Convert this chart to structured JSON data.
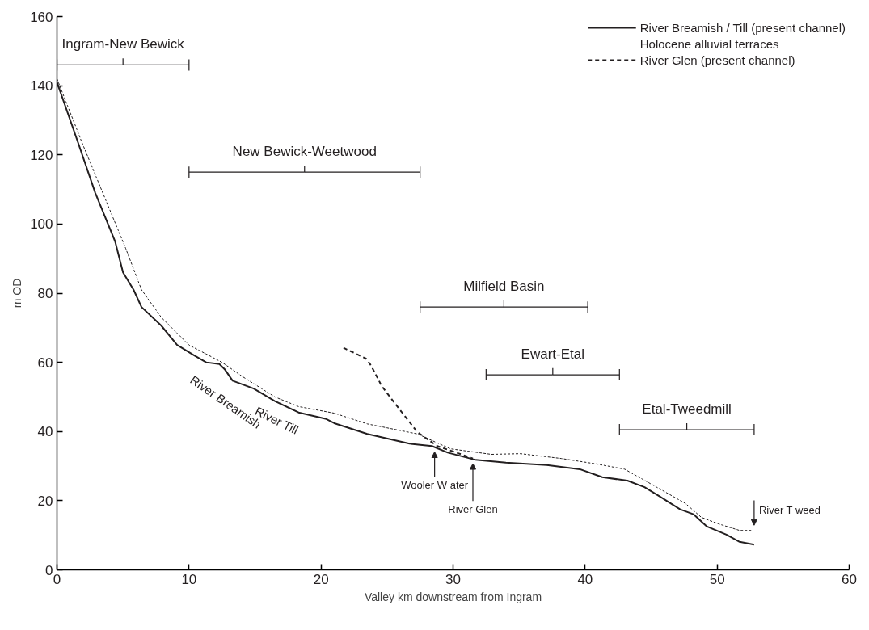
{
  "chart_data": {
    "type": "line",
    "xlabel": "Valley km downstream from Ingram",
    "ylabel": "m OD",
    "xlim": [
      0,
      60
    ],
    "ylim": [
      0,
      160
    ],
    "xticks": [
      0,
      10,
      20,
      30,
      40,
      50,
      60
    ],
    "yticks": [
      0,
      20,
      40,
      60,
      80,
      100,
      120,
      140,
      160
    ],
    "grid": false,
    "legend": "top right",
    "marker": "none",
    "series": [
      {
        "name": "River Breamish / Till (present channel)",
        "color": "#231f20",
        "line_style": "solid",
        "x": [
          0,
          1.6,
          2.9,
          4.4,
          5.0,
          5.8,
          6.4,
          7.9,
          9.1,
          10.4,
          11.3,
          12.3,
          12.7,
          13.3,
          14.9,
          16.5,
          18.3,
          20.4,
          21.0,
          23.5,
          26.7,
          28.4,
          29.6,
          31.7,
          34.0,
          37.1,
          39.6,
          41.3,
          43.2,
          44.5,
          45.7,
          47.2,
          48.2,
          49.2,
          50.7,
          51.7,
          52.8
        ],
        "values": [
          141,
          123.5,
          109,
          95,
          86,
          81,
          76,
          70.6,
          65,
          62,
          60,
          59.5,
          58,
          54.7,
          52.4,
          48.8,
          45.5,
          43.6,
          42.4,
          39.3,
          36.5,
          35.8,
          33.9,
          31.8,
          31,
          30.3,
          29.1,
          26.8,
          25.8,
          23.9,
          21.1,
          17.5,
          16.1,
          12.6,
          10.2,
          8.1,
          7.3
        ]
      },
      {
        "name": "Holocene alluvial terraces",
        "color": "#231f20",
        "line_style": "dotted",
        "x": [
          0,
          1.9,
          5.2,
          6.4,
          7.9,
          10.0,
          12.5,
          14.0,
          16.5,
          18.3,
          21.0,
          23.5,
          27.3,
          29.8,
          32.9,
          35.1,
          38.2,
          40.9,
          43.0,
          45.1,
          47.6,
          48.8,
          50.1,
          51.7,
          52.6
        ],
        "values": [
          142,
          123.5,
          93,
          81,
          73,
          65,
          60,
          56,
          50,
          47.2,
          45.3,
          42.2,
          39.3,
          35,
          33.4,
          33.6,
          32.2,
          30.6,
          29.1,
          24.6,
          19.2,
          15.2,
          13.3,
          11.4,
          11.4
        ]
      },
      {
        "name": "River Glen (present channel)",
        "color": "#231f20",
        "line_style": "dashed",
        "x": [
          21.7,
          23.4,
          23.8,
          24.6,
          25.7,
          27.3,
          28.8,
          30.1,
          31.5
        ],
        "values": [
          64.2,
          61.1,
          59,
          53.1,
          47.6,
          39.8,
          35.8,
          34.1,
          32.2
        ]
      }
    ],
    "annotations": [
      "Ingram-New Bewick",
      "New Bewick-Weetwood",
      "Milfield Basin",
      "Ewart-Etal",
      "Etal-Tweedmill",
      "River Breamish",
      "River Till",
      {
        "text": "Wooler W ater",
        "x": 28.6,
        "y": 35.6
      },
      {
        "text": "River Glen",
        "x": 31.5,
        "y": 32.2
      },
      {
        "text": "River T weed",
        "x": 52.6,
        "y": 11.4
      }
    ]
  }
}
